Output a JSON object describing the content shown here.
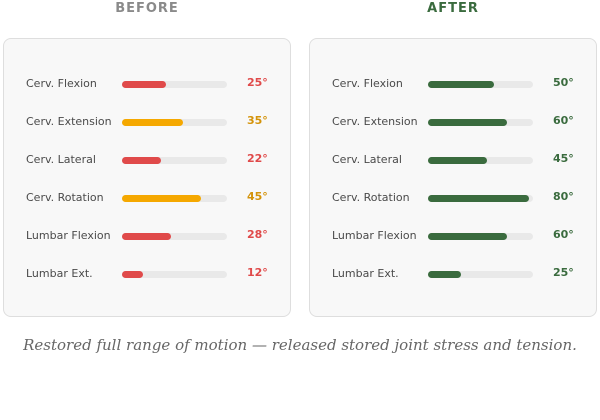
{
  "before": {
    "title": "BEFORE",
    "scale_max": 60,
    "items": [
      {
        "label": "Cerv. Flexion",
        "value": 25,
        "value_text": "25°",
        "color": "#e04a4a"
      },
      {
        "label": "Cerv. Extension",
        "value": 35,
        "value_text": "35°",
        "color": "#f5a800"
      },
      {
        "label": "Cerv. Lateral",
        "value": 22,
        "value_text": "22°",
        "color": "#e04a4a"
      },
      {
        "label": "Cerv. Rotation",
        "value": 45,
        "value_text": "45°",
        "color": "#f5a800"
      },
      {
        "label": "Lumbar Flexion",
        "value": 28,
        "value_text": "28°",
        "color": "#e04a4a"
      },
      {
        "label": "Lumbar Ext.",
        "value": 12,
        "value_text": "12°",
        "color": "#e04a4a"
      }
    ]
  },
  "after": {
    "title": "AFTER",
    "items": [
      {
        "label": "Cerv. Flexion",
        "value": 50,
        "value_text": "50°",
        "color": "#3a6b3e"
      },
      {
        "label": "Cerv. Extension",
        "value": 60,
        "value_text": "60°",
        "color": "#3a6b3e"
      },
      {
        "label": "Cerv. Lateral",
        "value": 45,
        "value_text": "45°",
        "color": "#3a6b3e"
      },
      {
        "label": "Cerv. Rotation",
        "value": 80,
        "value_text": "80°",
        "color": "#3a6b3e"
      },
      {
        "label": "Lumbar Flexion",
        "value": 60,
        "value_text": "60°",
        "color": "#3a6b3e"
      },
      {
        "label": "Lumbar Ext.",
        "value": 25,
        "value_text": "25°",
        "color": "#3a6b3e"
      }
    ]
  },
  "caption": "Restored full range of motion — released stored joint stress and tension."
}
